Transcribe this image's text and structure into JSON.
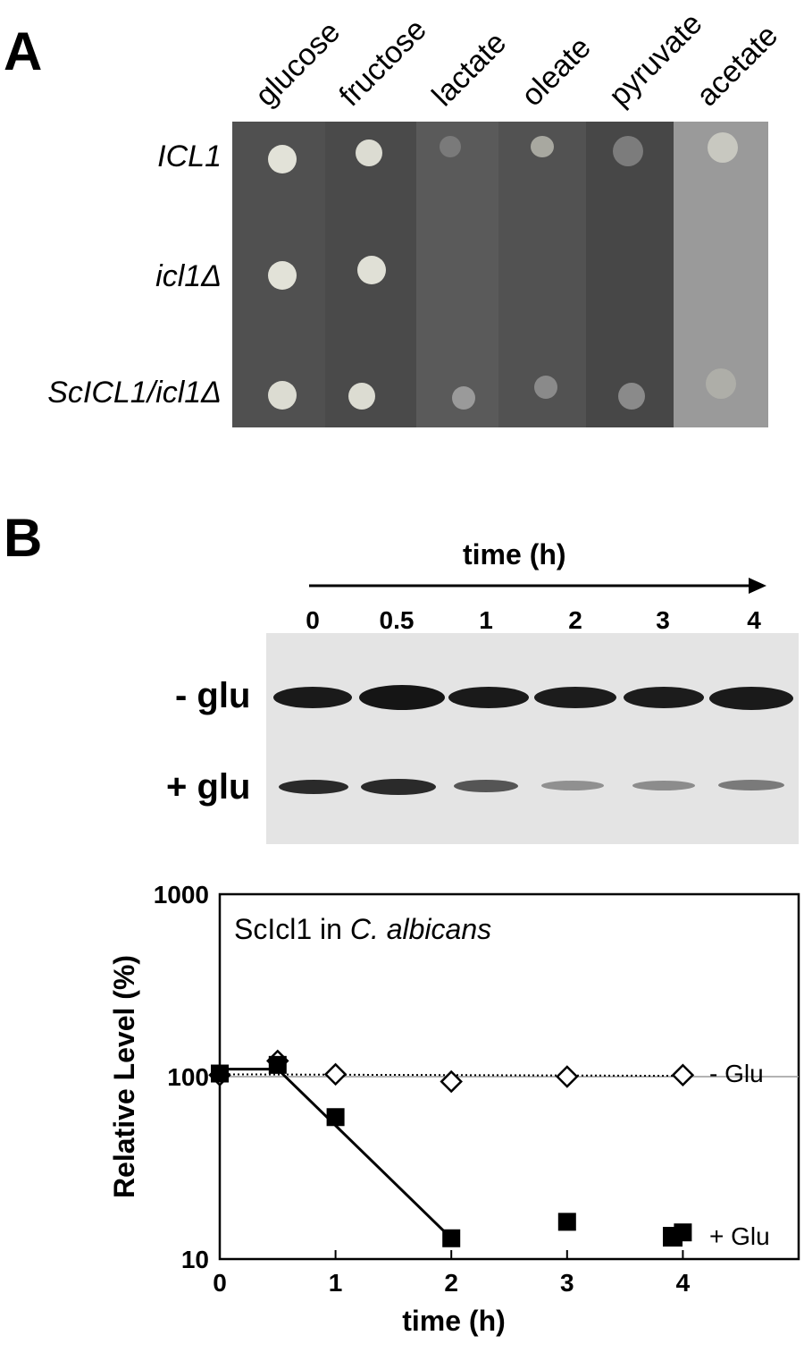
{
  "panel_a": {
    "letter": "A",
    "media": [
      "glucose",
      "fructose",
      "lactate",
      "oleate",
      "pyruvate",
      "acetate"
    ],
    "strains": [
      "ICL1",
      "icl1Δ",
      "ScICL1/icl1Δ"
    ]
  },
  "panel_b": {
    "letter": "B",
    "time_title": "time (h)",
    "lanes": [
      "0",
      "0.5",
      "1",
      "2",
      "3",
      "4"
    ],
    "rows": [
      "- glu",
      "+ glu"
    ]
  },
  "chart_data": {
    "type": "scatter",
    "annotation": "ScIcl1 in C. albicans",
    "annotation_plain": "ScIcl1 in ",
    "annotation_italic": "C. albicans",
    "xlabel": "time (h)",
    "ylabel": "Relative Level (%)",
    "xlim": [
      0,
      5
    ],
    "ylim": [
      10,
      1000
    ],
    "yscale": "log",
    "xticks": [
      0,
      1,
      2,
      3,
      4
    ],
    "xtick_labels": [
      "0",
      "1",
      "2",
      "3",
      "4"
    ],
    "yticks": [
      10,
      100,
      1000
    ],
    "ytick_labels": [
      "10",
      "100",
      "1000"
    ],
    "grid": false,
    "series": [
      {
        "name": "- Glu",
        "marker": "open-diamond",
        "x": [
          0,
          0.5,
          1,
          2,
          3,
          4
        ],
        "y": [
          102,
          122,
          103,
          94,
          100,
          102
        ],
        "fit_line": {
          "x": [
            0,
            4
          ],
          "y": [
            103,
            101
          ],
          "style": "dotted"
        }
      },
      {
        "name": "+ Glu",
        "marker": "filled-square",
        "x": [
          0,
          0.5,
          1,
          2,
          3,
          4
        ],
        "y": [
          104,
          116,
          60,
          13,
          16,
          14
        ],
        "fit_line": {
          "x": [
            0,
            0.5,
            2
          ],
          "y": [
            110,
            110,
            13
          ],
          "style": "solid"
        }
      }
    ],
    "colors": {
      "marker": "#000000",
      "axis": "#000000",
      "reference_line": "#9a9a9a"
    }
  }
}
